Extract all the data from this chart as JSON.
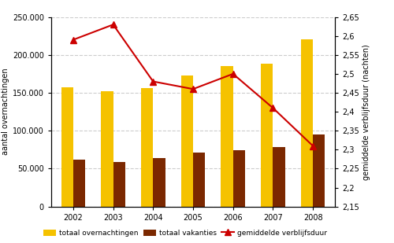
{
  "years": [
    2002,
    2003,
    2004,
    2005,
    2006,
    2007,
    2008
  ],
  "totaal_overnachtingen": [
    157000,
    152000,
    156000,
    173000,
    185000,
    188000,
    221000
  ],
  "totaal_vakanties": [
    62000,
    59000,
    64000,
    71000,
    74000,
    78000,
    95000
  ],
  "gemiddelde_verblijfsduur": [
    2.59,
    2.63,
    2.48,
    2.46,
    2.5,
    2.41,
    2.31
  ],
  "bar_color_overnachtingen": "#F5C200",
  "bar_color_vakanties": "#7B2800",
  "line_color": "#CC0000",
  "ylabel_left": "aantal overnachtingen",
  "ylabel_right": "gemiddelde verblijfsduur (nachten)",
  "ylim_left": [
    0,
    250000
  ],
  "ylim_right": [
    2.15,
    2.65
  ],
  "yticks_left": [
    0,
    50000,
    100000,
    150000,
    200000,
    250000
  ],
  "yticks_right": [
    2.15,
    2.2,
    2.25,
    2.3,
    2.35,
    2.4,
    2.45,
    2.5,
    2.55,
    2.6,
    2.65
  ],
  "legend_labels": [
    "totaal overnachtingen",
    "totaal vakanties",
    "gemiddelde verblijfsduur"
  ],
  "background_color": "#ffffff",
  "grid_color": "#cccccc",
  "tick_fontsize": 7,
  "label_fontsize": 7,
  "bar_width": 0.3
}
